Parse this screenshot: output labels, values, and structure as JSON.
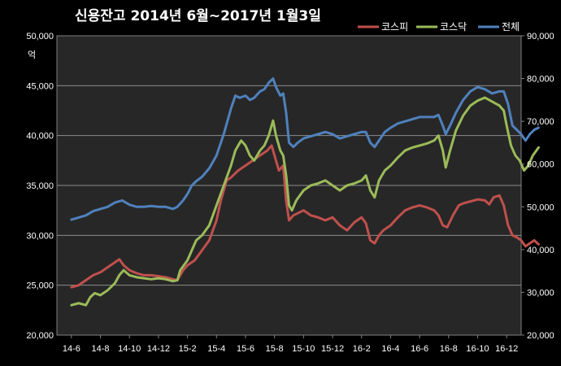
{
  "chart_data": {
    "type": "line",
    "title": "신용잔고 2014년 6월~2017년 1월3일",
    "left_axis_unit": "억",
    "yleft_lim": [
      20000,
      50000
    ],
    "yleft_ticks": [
      "20,000",
      "25,000",
      "30,000",
      "35,000",
      "40,000",
      "45,000",
      "50,000"
    ],
    "yright_lim": [
      20000,
      90000
    ],
    "yright_ticks": [
      "20,000",
      "30,000",
      "40,000",
      "50,000",
      "60,000",
      "70,000",
      "80,000",
      "90,000"
    ],
    "x_ticks": [
      "14-6",
      "14-8",
      "14-10",
      "14-12",
      "15-2",
      "15-4",
      "15-6",
      "15-8",
      "15-10",
      "15-12",
      "16-2",
      "16-4",
      "16-6",
      "16-8",
      "16-10",
      "16-12"
    ],
    "grid": true,
    "legend_position": "top-right",
    "series": [
      {
        "name": "코스피",
        "axis": "left",
        "color": "#c0504d",
        "points": [
          [
            0,
            24800
          ],
          [
            0.5,
            25000
          ],
          [
            1,
            25500
          ],
          [
            1.5,
            26000
          ],
          [
            2,
            26300
          ],
          [
            2.5,
            26800
          ],
          [
            3,
            27300
          ],
          [
            3.3,
            27600
          ],
          [
            3.6,
            27000
          ],
          [
            4,
            26500
          ],
          [
            4.5,
            26200
          ],
          [
            5,
            26000
          ],
          [
            5.5,
            26000
          ],
          [
            6,
            25900
          ],
          [
            6.5,
            25800
          ],
          [
            7,
            25600
          ],
          [
            7.3,
            25500
          ],
          [
            7.7,
            26500
          ],
          [
            8,
            27000
          ],
          [
            8.5,
            27500
          ],
          [
            9,
            28500
          ],
          [
            9.5,
            29500
          ],
          [
            10,
            31500
          ],
          [
            10.3,
            33500
          ],
          [
            10.7,
            35500
          ],
          [
            11,
            35800
          ],
          [
            11.5,
            36500
          ],
          [
            12,
            37000
          ],
          [
            12.5,
            37500
          ],
          [
            13,
            38000
          ],
          [
            13.5,
            38500
          ],
          [
            13.8,
            39000
          ],
          [
            14,
            38000
          ],
          [
            14.3,
            36500
          ],
          [
            14.6,
            37000
          ],
          [
            14.8,
            33500
          ],
          [
            15,
            31500
          ],
          [
            15.3,
            32000
          ],
          [
            16,
            32500
          ],
          [
            16.5,
            32000
          ],
          [
            17,
            31800
          ],
          [
            17.5,
            31500
          ],
          [
            18,
            31800
          ],
          [
            18.5,
            31000
          ],
          [
            19,
            30500
          ],
          [
            19.5,
            31300
          ],
          [
            20,
            31800
          ],
          [
            20.3,
            31200
          ],
          [
            20.6,
            29500
          ],
          [
            20.9,
            29200
          ],
          [
            21.2,
            30000
          ],
          [
            21.5,
            30500
          ],
          [
            22,
            31000
          ],
          [
            22.5,
            31800
          ],
          [
            23,
            32500
          ],
          [
            23.5,
            32800
          ],
          [
            24,
            33000
          ],
          [
            24.5,
            32800
          ],
          [
            25,
            32500
          ],
          [
            25.3,
            32000
          ],
          [
            25.6,
            31000
          ],
          [
            25.9,
            30800
          ],
          [
            26.3,
            32000
          ],
          [
            26.7,
            33000
          ],
          [
            27,
            33200
          ],
          [
            27.5,
            33400
          ],
          [
            28,
            33600
          ],
          [
            28.5,
            33500
          ],
          [
            28.8,
            33100
          ],
          [
            29.1,
            33800
          ],
          [
            29.5,
            34000
          ],
          [
            29.8,
            33000
          ],
          [
            30.1,
            31000
          ],
          [
            30.4,
            30000
          ],
          [
            30.7,
            29800
          ],
          [
            31,
            29500
          ],
          [
            31.3,
            28900
          ],
          [
            31.6,
            29200
          ],
          [
            31.9,
            29500
          ],
          [
            32.2,
            29100
          ]
        ]
      },
      {
        "name": "코스닥",
        "axis": "left",
        "color": "#9bbb59",
        "points": [
          [
            0,
            23000
          ],
          [
            0.5,
            23200
          ],
          [
            1,
            23000
          ],
          [
            1.3,
            23800
          ],
          [
            1.6,
            24200
          ],
          [
            2,
            24000
          ],
          [
            2.5,
            24500
          ],
          [
            3,
            25200
          ],
          [
            3.3,
            26000
          ],
          [
            3.6,
            26500
          ],
          [
            4,
            26000
          ],
          [
            4.5,
            25800
          ],
          [
            5,
            25700
          ],
          [
            5.5,
            25600
          ],
          [
            6,
            25700
          ],
          [
            6.5,
            25600
          ],
          [
            7,
            25400
          ],
          [
            7.3,
            25500
          ],
          [
            7.5,
            26500
          ],
          [
            8,
            27500
          ],
          [
            8.3,
            28500
          ],
          [
            8.6,
            29500
          ],
          [
            9,
            30000
          ],
          [
            9.5,
            31000
          ],
          [
            10,
            33000
          ],
          [
            10.5,
            35000
          ],
          [
            11,
            37000
          ],
          [
            11.3,
            38500
          ],
          [
            11.7,
            39500
          ],
          [
            12,
            39000
          ],
          [
            12.3,
            38000
          ],
          [
            12.6,
            37500
          ],
          [
            13,
            38500
          ],
          [
            13.3,
            39000
          ],
          [
            13.6,
            40000
          ],
          [
            13.9,
            41500
          ],
          [
            14.1,
            40000
          ],
          [
            14.4,
            38500
          ],
          [
            14.6,
            38000
          ],
          [
            14.8,
            36000
          ],
          [
            15,
            33000
          ],
          [
            15.2,
            32500
          ],
          [
            15.5,
            33500
          ],
          [
            16,
            34500
          ],
          [
            16.5,
            35000
          ],
          [
            17,
            35200
          ],
          [
            17.5,
            35500
          ],
          [
            18,
            35000
          ],
          [
            18.5,
            34500
          ],
          [
            19,
            35000
          ],
          [
            19.5,
            35200
          ],
          [
            20,
            35500
          ],
          [
            20.3,
            36000
          ],
          [
            20.6,
            34500
          ],
          [
            20.9,
            33800
          ],
          [
            21.2,
            35500
          ],
          [
            21.6,
            36500
          ],
          [
            22,
            37000
          ],
          [
            22.5,
            37800
          ],
          [
            23,
            38500
          ],
          [
            23.5,
            38800
          ],
          [
            24,
            39000
          ],
          [
            24.5,
            39200
          ],
          [
            25,
            39500
          ],
          [
            25.3,
            40000
          ],
          [
            25.6,
            38500
          ],
          [
            25.8,
            36800
          ],
          [
            26.1,
            38500
          ],
          [
            26.5,
            40500
          ],
          [
            27,
            42000
          ],
          [
            27.5,
            43000
          ],
          [
            28,
            43500
          ],
          [
            28.5,
            43800
          ],
          [
            29,
            43400
          ],
          [
            29.5,
            43000
          ],
          [
            29.8,
            42500
          ],
          [
            30,
            41000
          ],
          [
            30.3,
            39000
          ],
          [
            30.6,
            38000
          ],
          [
            30.9,
            37500
          ],
          [
            31.2,
            36500
          ],
          [
            31.5,
            37000
          ],
          [
            31.8,
            38000
          ],
          [
            32.2,
            38800
          ]
        ]
      },
      {
        "name": "전체",
        "axis": "right",
        "color": "#4f81bd",
        "points": [
          [
            0,
            47000
          ],
          [
            0.5,
            47500
          ],
          [
            1,
            48000
          ],
          [
            1.5,
            49000
          ],
          [
            2,
            49500
          ],
          [
            2.5,
            50000
          ],
          [
            3,
            51000
          ],
          [
            3.5,
            51500
          ],
          [
            4,
            50500
          ],
          [
            4.5,
            50000
          ],
          [
            5,
            50000
          ],
          [
            5.5,
            50200
          ],
          [
            6,
            50000
          ],
          [
            6.5,
            50000
          ],
          [
            7,
            49500
          ],
          [
            7.3,
            50000
          ],
          [
            7.7,
            51500
          ],
          [
            8,
            53000
          ],
          [
            8.3,
            55000
          ],
          [
            8.6,
            56000
          ],
          [
            9,
            57000
          ],
          [
            9.5,
            59000
          ],
          [
            10,
            62000
          ],
          [
            10.5,
            67000
          ],
          [
            11,
            73000
          ],
          [
            11.3,
            76000
          ],
          [
            11.6,
            75500
          ],
          [
            12,
            76000
          ],
          [
            12.3,
            75000
          ],
          [
            12.6,
            75500
          ],
          [
            13,
            77000
          ],
          [
            13.3,
            77500
          ],
          [
            13.6,
            79000
          ],
          [
            13.9,
            80000
          ],
          [
            14.1,
            78000
          ],
          [
            14.4,
            76000
          ],
          [
            14.6,
            76500
          ],
          [
            14.8,
            72000
          ],
          [
            15,
            65000
          ],
          [
            15.3,
            64000
          ],
          [
            15.6,
            65000
          ],
          [
            16,
            66000
          ],
          [
            16.5,
            66500
          ],
          [
            17,
            67000
          ],
          [
            17.5,
            67500
          ],
          [
            18,
            67000
          ],
          [
            18.5,
            66000
          ],
          [
            19,
            66500
          ],
          [
            19.5,
            67000
          ],
          [
            20,
            67500
          ],
          [
            20.3,
            67500
          ],
          [
            20.6,
            65000
          ],
          [
            20.9,
            64000
          ],
          [
            21.2,
            65500
          ],
          [
            21.6,
            67500
          ],
          [
            22,
            68500
          ],
          [
            22.5,
            69500
          ],
          [
            23,
            70000
          ],
          [
            23.5,
            70500
          ],
          [
            24,
            71000
          ],
          [
            24.5,
            71000
          ],
          [
            25,
            71000
          ],
          [
            25.3,
            71500
          ],
          [
            25.6,
            69000
          ],
          [
            25.8,
            67000
          ],
          [
            26.1,
            69000
          ],
          [
            26.5,
            72000
          ],
          [
            27,
            75000
          ],
          [
            27.5,
            77000
          ],
          [
            28,
            78000
          ],
          [
            28.5,
            77500
          ],
          [
            29,
            76500
          ],
          [
            29.5,
            77000
          ],
          [
            29.8,
            77000
          ],
          [
            30.1,
            74000
          ],
          [
            30.4,
            69000
          ],
          [
            30.7,
            68000
          ],
          [
            31,
            67000
          ],
          [
            31.3,
            65500
          ],
          [
            31.6,
            67000
          ],
          [
            31.9,
            68000
          ],
          [
            32.2,
            68500
          ]
        ]
      }
    ]
  }
}
